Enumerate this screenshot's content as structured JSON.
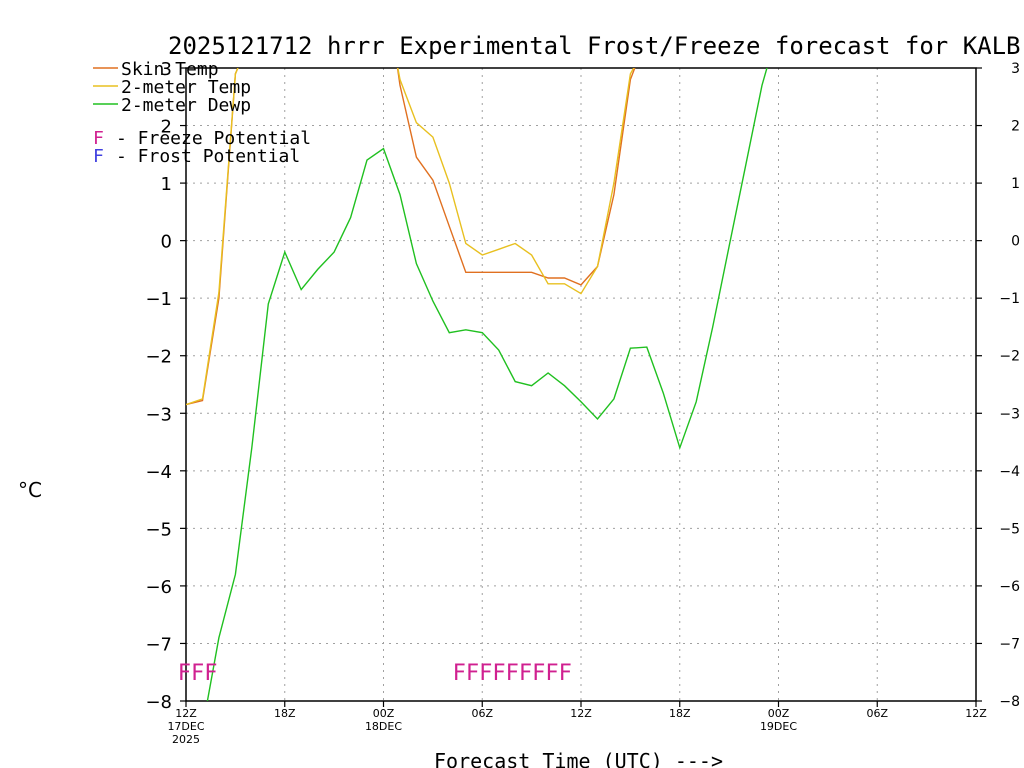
{
  "chart_data": {
    "type": "line",
    "title": "2025121712 hrrr Experimental Frost/Freeze forecast for KALB",
    "xlabel": "Forecast Time (UTC) --->",
    "ylabel": "°C",
    "ylim": [
      -8,
      3
    ],
    "xlim_hours": [
      0,
      48
    ],
    "grid": true,
    "yticks": [
      -8,
      -7,
      -6,
      -5,
      -4,
      -3,
      -2,
      -1,
      0,
      1,
      2,
      3
    ],
    "ytick_labels": [
      "−8",
      "−7",
      "−6",
      "−5",
      "−4",
      "−3",
      "−2",
      "−1",
      "0",
      "1",
      "2",
      "3"
    ],
    "xticks": [
      {
        "hour": 0,
        "label": "12Z",
        "sub1": "17DEC",
        "sub2": "2025"
      },
      {
        "hour": 6,
        "label": "18Z",
        "sub1": "",
        "sub2": ""
      },
      {
        "hour": 12,
        "label": "00Z",
        "sub1": "18DEC",
        "sub2": ""
      },
      {
        "hour": 18,
        "label": "06Z",
        "sub1": "",
        "sub2": ""
      },
      {
        "hour": 24,
        "label": "12Z",
        "sub1": "",
        "sub2": ""
      },
      {
        "hour": 30,
        "label": "18Z",
        "sub1": "",
        "sub2": ""
      },
      {
        "hour": 36,
        "label": "00Z",
        "sub1": "19DEC",
        "sub2": ""
      },
      {
        "hour": 42,
        "label": "06Z",
        "sub1": "",
        "sub2": ""
      },
      {
        "hour": 48,
        "label": "12Z",
        "sub1": "",
        "sub2": ""
      }
    ],
    "legend": [
      {
        "label": "Skin Temp",
        "color": "#e07020"
      },
      {
        "label": "2-meter Temp",
        "color": "#e8c020"
      },
      {
        "label": "2-meter Dewp",
        "color": "#20c020"
      }
    ],
    "potential_legend": [
      {
        "letter": "F",
        "text": "- Freeze Potential",
        "color": "#d02090"
      },
      {
        "letter": "F",
        "text": "- Frost Potential",
        "color": "#4040e0"
      }
    ],
    "series": [
      {
        "name": "Skin Temp",
        "color": "#e07020",
        "x": [
          0,
          1,
          2,
          3,
          3.3,
          12.8,
          13,
          14,
          15,
          16,
          17,
          18,
          19,
          20,
          21,
          22,
          23,
          24,
          25,
          26,
          27,
          27.4
        ],
        "y": [
          -2.85,
          -2.78,
          -1.0,
          2.9,
          3.1,
          3.1,
          2.7,
          1.45,
          1.05,
          0.25,
          -0.55,
          -0.55,
          -0.55,
          -0.55,
          -0.55,
          -0.65,
          -0.65,
          -0.77,
          -0.45,
          0.8,
          2.8,
          3.1
        ]
      },
      {
        "name": "2-meter Temp",
        "color": "#e8c020",
        "x": [
          0,
          1,
          2,
          3,
          3.3,
          12.8,
          13,
          14,
          15,
          16,
          17,
          18,
          19,
          20,
          21,
          22,
          23,
          24,
          25,
          26,
          27,
          27.4
        ],
        "y": [
          -2.85,
          -2.75,
          -0.9,
          2.9,
          3.1,
          3.1,
          2.8,
          2.05,
          1.8,
          1.0,
          -0.05,
          -0.25,
          -0.15,
          -0.05,
          -0.25,
          -0.75,
          -0.75,
          -0.92,
          -0.45,
          1.0,
          2.9,
          3.1
        ]
      },
      {
        "name": "2-meter Dewp",
        "color": "#20c020",
        "x": [
          1.3,
          2,
          3,
          4,
          5,
          6,
          7,
          8,
          9,
          10,
          11,
          12,
          13,
          14,
          15,
          16,
          17,
          18,
          19,
          20,
          21,
          22,
          23,
          24,
          25,
          26,
          27,
          28,
          29,
          30,
          31,
          32,
          33,
          34,
          35,
          35.4
        ],
        "y": [
          -8.0,
          -6.9,
          -5.8,
          -3.6,
          -1.1,
          -0.2,
          -0.85,
          -0.5,
          -0.2,
          0.4,
          1.4,
          1.6,
          0.8,
          -0.4,
          -1.05,
          -1.6,
          -1.55,
          -1.6,
          -1.9,
          -2.45,
          -2.52,
          -2.3,
          -2.52,
          -2.8,
          -3.1,
          -2.75,
          -1.87,
          -1.85,
          -2.65,
          -3.6,
          -2.8,
          -1.5,
          -0.1,
          1.3,
          2.7,
          3.1
        ]
      }
    ],
    "freeze_flags": [
      {
        "start_hour": -0.5,
        "text": "FFF",
        "color": "#d02090"
      },
      {
        "start_hour": 16.2,
        "text": "FFFFFFFFF",
        "color": "#d02090"
      }
    ]
  }
}
